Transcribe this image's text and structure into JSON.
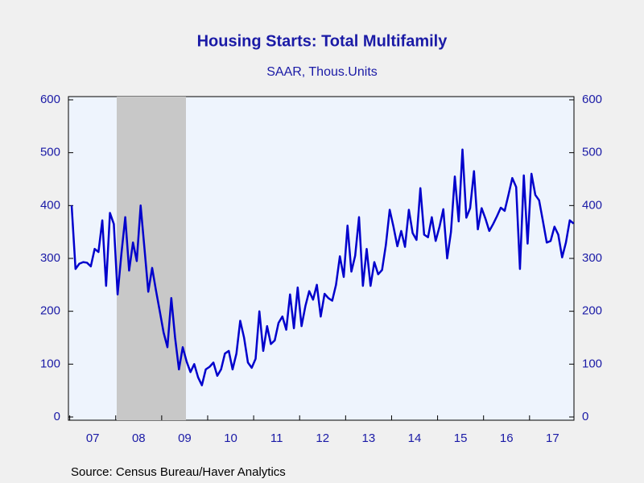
{
  "chart_data": {
    "type": "line",
    "title": "Housing Starts: Total Multifamily",
    "subtitle": "SAAR, Thous.Units",
    "source": "Source:  Census Bureau/Haver Analytics",
    "x_labels": [
      "07",
      "08",
      "09",
      "10",
      "11",
      "12",
      "13",
      "14",
      "15",
      "16",
      "17"
    ],
    "color": "#0000cc",
    "values": [
      400,
      280,
      290,
      293,
      292,
      285,
      318,
      312,
      372,
      248,
      386,
      365,
      232,
      310,
      378,
      277,
      330,
      295,
      400,
      320,
      237,
      282,
      240,
      200,
      160,
      132,
      225,
      150,
      90,
      132,
      105,
      85,
      100,
      75,
      60,
      90,
      95,
      103,
      78,
      90,
      120,
      125,
      90,
      120,
      182,
      150,
      103,
      93,
      110,
      200,
      125,
      172,
      138,
      145,
      178,
      190,
      165,
      232,
      168,
      245,
      172,
      210,
      238,
      222,
      250,
      190,
      233,
      225,
      220,
      250,
      304,
      265,
      362,
      275,
      305,
      378,
      248,
      318,
      248,
      293,
      270,
      278,
      325,
      392,
      360,
      323,
      352,
      322,
      392,
      348,
      335,
      433,
      345,
      340,
      378,
      333,
      360,
      393,
      300,
      350,
      455,
      370,
      506,
      377,
      395,
      465,
      355,
      395,
      375,
      352,
      365,
      380,
      396,
      390,
      420,
      452,
      435,
      280,
      457,
      328,
      460,
      420,
      410,
      370,
      330,
      333,
      360,
      345,
      302,
      330,
      372,
      366
    ],
    "ylim": [
      0,
      600
    ],
    "yticks": [
      0,
      100,
      200,
      300,
      400,
      500,
      600
    ],
    "y2lim": [
      0,
      600
    ],
    "y2ticks": [
      0,
      100,
      200,
      300,
      400,
      500,
      600
    ]
  }
}
